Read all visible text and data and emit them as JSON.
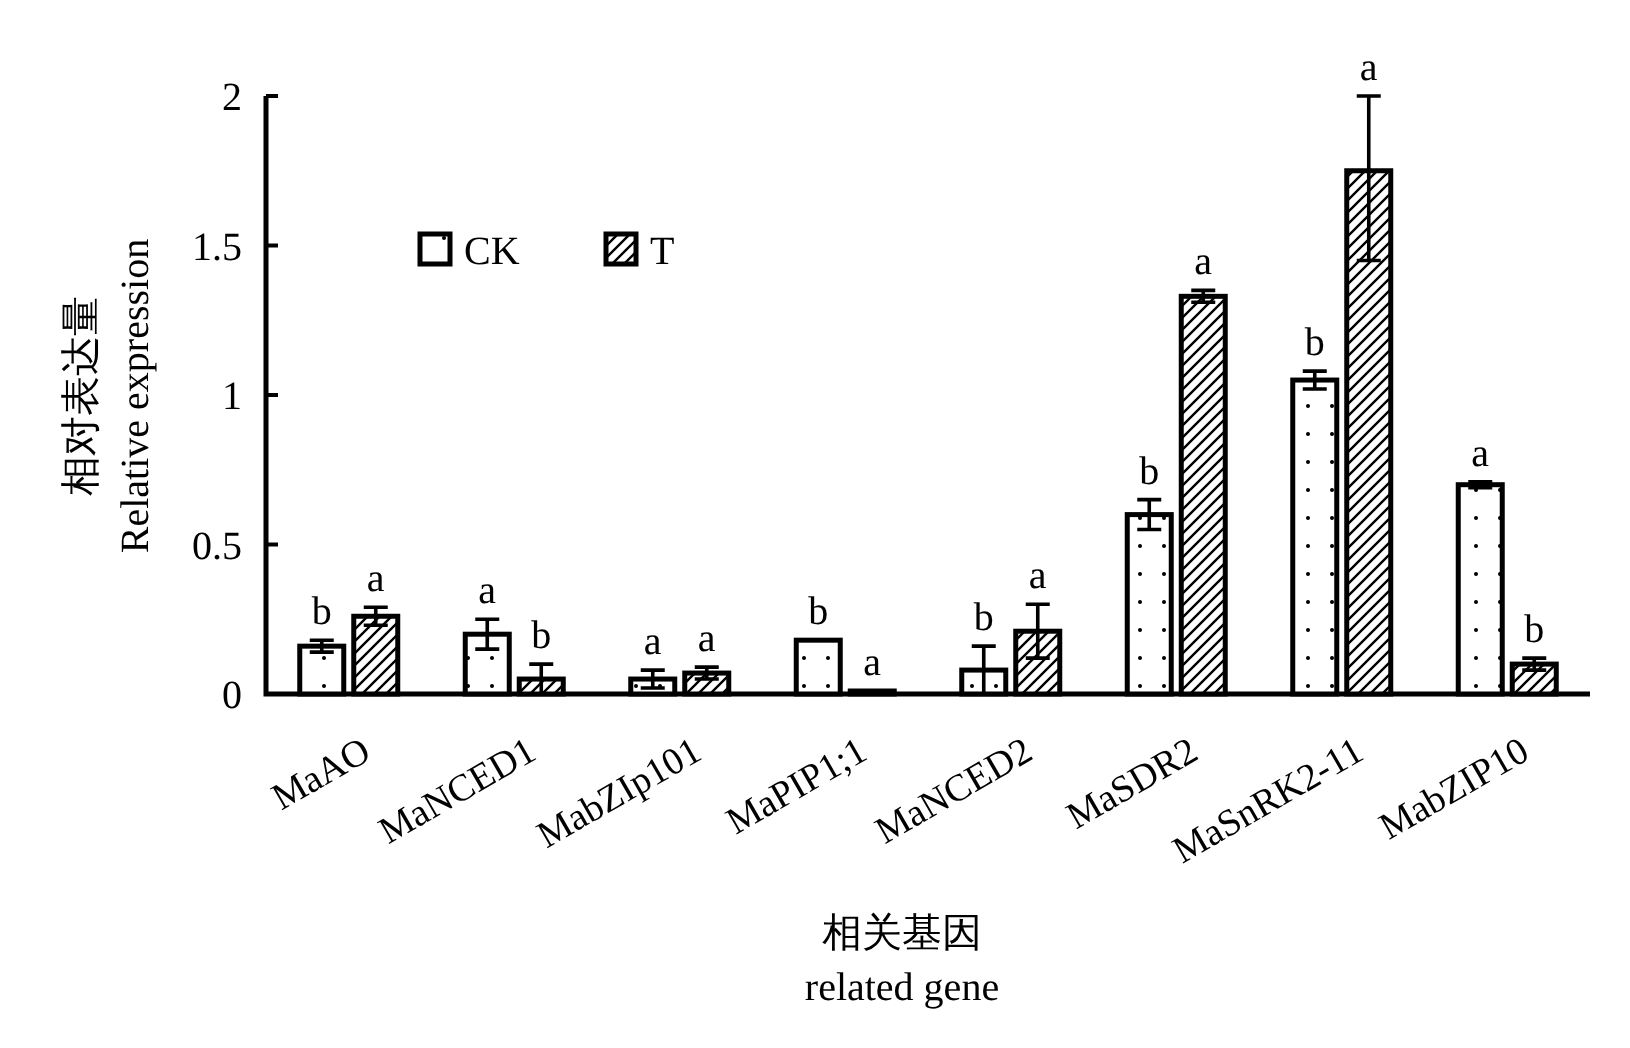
{
  "chart_data": {
    "type": "bar",
    "xlabel": "相关基因\nrelated gene",
    "ylabel": "相对表达量\nRelative expression",
    "categories": [
      "MaAO",
      "MaNCED1",
      "MabZIp101",
      "MaPIP1;1",
      "MaNCED2",
      "MaSDR2",
      "MaSnRK2-11",
      "MabZIP10"
    ],
    "series": [
      {
        "name": "CK",
        "color": "#000000",
        "values": [
          0.16,
          0.2,
          0.05,
          0.18,
          0.08,
          0.6,
          1.05,
          0.7
        ],
        "errors": [
          0.02,
          0.05,
          0.03,
          null,
          0.08,
          0.05,
          0.03,
          0.01
        ],
        "value_labels": [
          "b",
          "a",
          "a",
          "b",
          "b",
          "b",
          "b",
          "a"
        ]
      },
      {
        "name": "T",
        "color": "#000000",
        "values": [
          0.26,
          0.05,
          0.07,
          0.01,
          0.21,
          1.33,
          1.75,
          0.1
        ],
        "errors": [
          0.03,
          0.05,
          0.02,
          null,
          0.09,
          0.02,
          [
            1.45,
            2
          ],
          0.02
        ],
        "value_labels": [
          "a",
          "b",
          "a",
          "a",
          "a",
          "a",
          "a",
          "b"
        ]
      }
    ],
    "ylim": [
      0,
      2
    ],
    "yticks": [
      0,
      0.5,
      1,
      1.5,
      2
    ],
    "grid": false,
    "legend": "top left"
  }
}
